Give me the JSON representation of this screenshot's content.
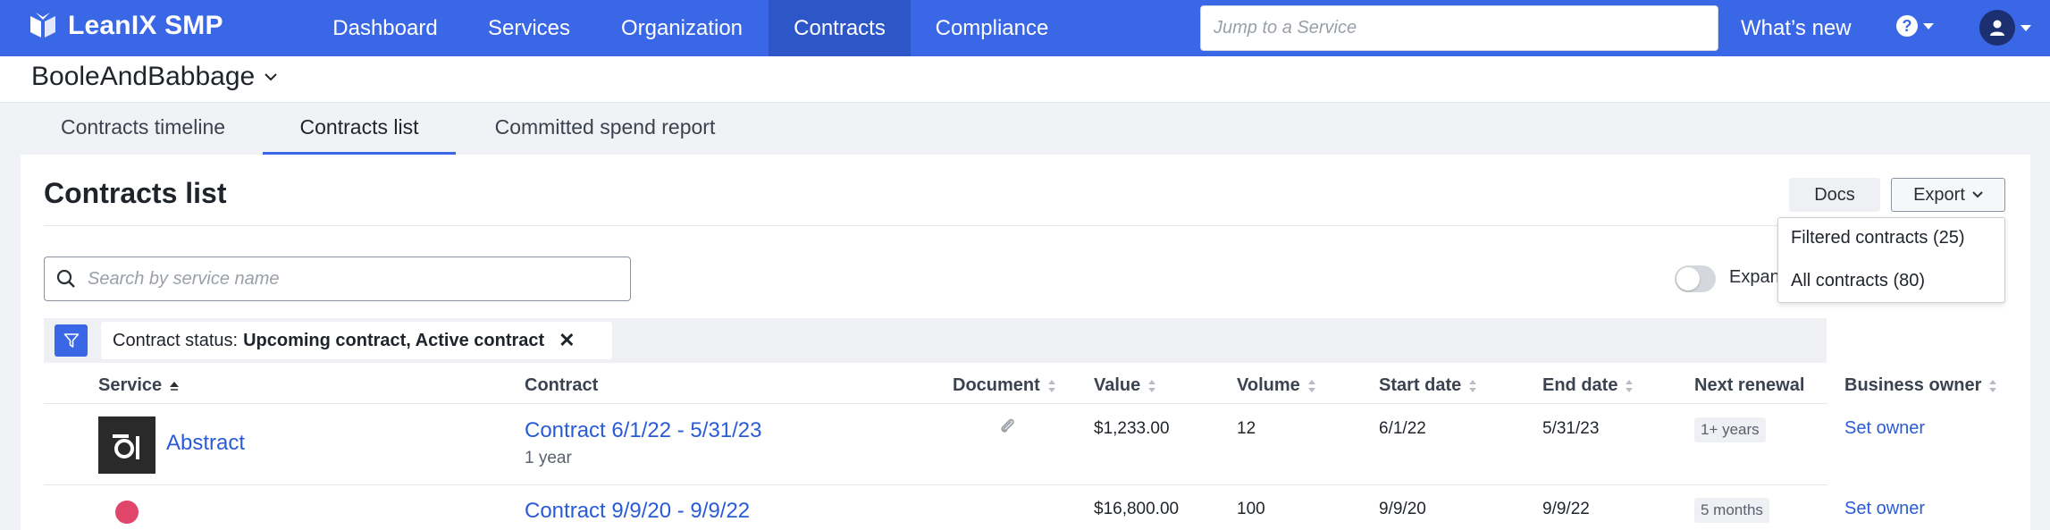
{
  "nav": {
    "brand": "LeanIX SMP",
    "items": [
      "Dashboard",
      "Services",
      "Organization",
      "Contracts",
      "Compliance"
    ],
    "active_item": "Contracts",
    "jump_placeholder": "Jump to a Service",
    "whats_new": "What’s new",
    "help_glyph": "?"
  },
  "workspace": {
    "name": "BooleAndBabbage"
  },
  "tabs": [
    "Contracts timeline",
    "Contracts list",
    "Committed spend report"
  ],
  "active_tab": "Contracts list",
  "page": {
    "title": "Contracts list",
    "docs_label": "Docs",
    "export_label": "Export",
    "export_menu": [
      "Filtered contracts (25)",
      "All contracts (80)"
    ],
    "search_placeholder": "Search by service name",
    "toggle_label": "Expand",
    "toggle_on": false
  },
  "filter": {
    "label": "Contract status:",
    "value": "Upcoming contract, Active contract",
    "remove_glyph": "✕"
  },
  "table": {
    "columns": [
      "Service",
      "Contract",
      "Document",
      "Value",
      "Volume",
      "Start date",
      "End date",
      "Next renewal",
      "Business owner"
    ],
    "rows": [
      {
        "service": "Abstract",
        "contract": "Contract 6/1/22 - 5/31/23",
        "duration": "1 year",
        "value": "$1,233.00",
        "volume": "12",
        "start": "6/1/22",
        "end": "5/31/23",
        "renewal": "1+ years",
        "owner": "Set owner"
      },
      {
        "service": "",
        "contract": "Contract 9/9/20 - 9/9/22",
        "duration": "",
        "value": "$16,800.00",
        "volume": "100",
        "start": "9/9/20",
        "end": "9/9/22",
        "renewal": "5 months",
        "owner": "Set owner"
      }
    ]
  },
  "colors": {
    "nav_bg": "#3a67e6",
    "nav_active": "#2d56c9",
    "link": "#2a5bd7",
    "filter_btn": "#3a67e6",
    "service_dot": "#e0456a"
  }
}
